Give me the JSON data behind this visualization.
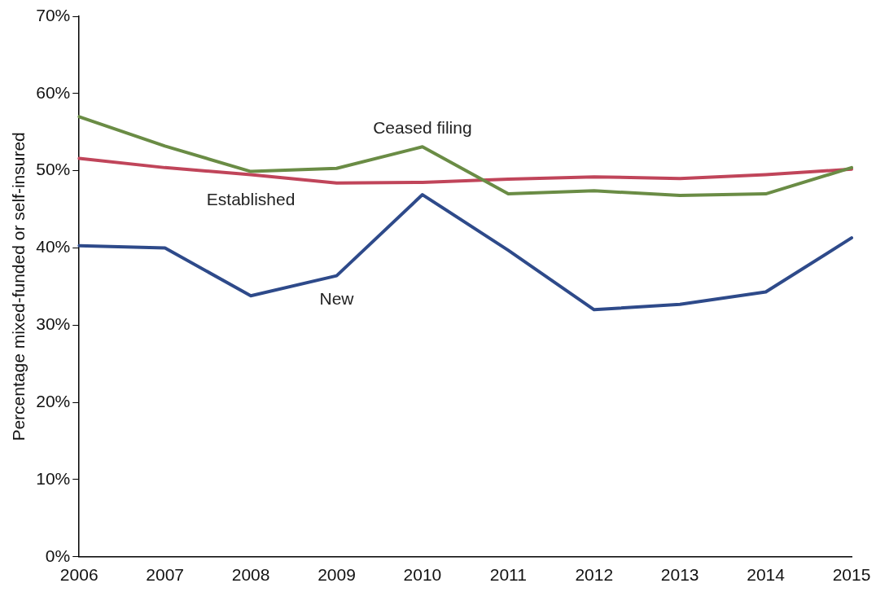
{
  "chart_data": {
    "type": "line",
    "ylabel": "Percentage mixed-funded or self-insured",
    "categories": [
      "2006",
      "2007",
      "2008",
      "2009",
      "2010",
      "2011",
      "2012",
      "2013",
      "2014",
      "2015"
    ],
    "series": [
      {
        "name": "Ceased filing",
        "color": "#6a8c45",
        "values": [
          57.0,
          53.2,
          49.9,
          50.3,
          53.1,
          47.0,
          47.4,
          46.8,
          47.0,
          50.4
        ]
      },
      {
        "name": "Established",
        "color": "#c0455a",
        "values": [
          51.6,
          50.4,
          49.5,
          48.4,
          48.5,
          48.9,
          49.2,
          49.0,
          49.5,
          50.2
        ]
      },
      {
        "name": "New",
        "color": "#2e4a8a",
        "values": [
          40.3,
          40.0,
          33.8,
          36.4,
          46.9,
          39.7,
          32.0,
          32.7,
          34.3,
          41.3
        ]
      }
    ],
    "ylim": [
      0,
      70
    ],
    "yticks": [
      {
        "value": 0,
        "label": "0%"
      },
      {
        "value": 10,
        "label": "10%"
      },
      {
        "value": 20,
        "label": "20%"
      },
      {
        "value": 30,
        "label": "30%"
      },
      {
        "value": 40,
        "label": "40%"
      },
      {
        "value": 50,
        "label": "50%"
      },
      {
        "value": 60,
        "label": "60%"
      },
      {
        "value": 70,
        "label": "70%"
      }
    ],
    "grid": false,
    "legend": false,
    "marker": "none",
    "line_style": "solid"
  }
}
